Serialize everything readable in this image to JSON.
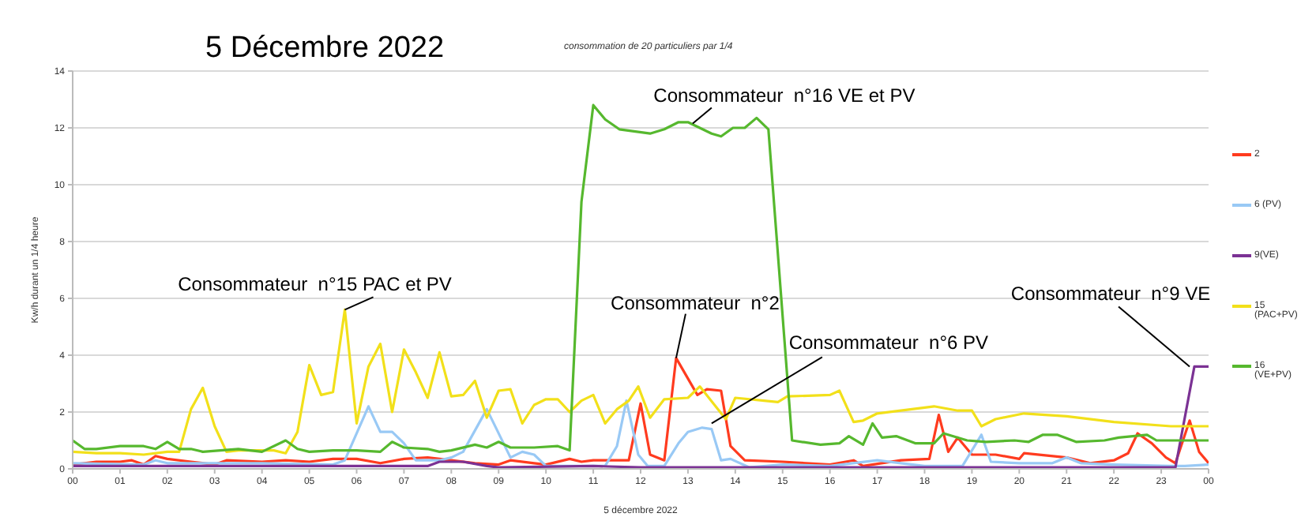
{
  "chart_data": {
    "type": "line",
    "title": "5 Décembre 2022",
    "subtitle": "consommation de 20 particuliers par 1/4",
    "xlabel": "5 décembre 2022",
    "ylabel": "Kw/h durant un 1/4 heure",
    "xlim": [
      0,
      24
    ],
    "xticks": [
      {
        "value": 0,
        "label": "00"
      },
      {
        "value": 1,
        "label": "01"
      },
      {
        "value": 2,
        "label": "02"
      },
      {
        "value": 3,
        "label": "03"
      },
      {
        "value": 4,
        "label": "04"
      },
      {
        "value": 5,
        "label": "05"
      },
      {
        "value": 6,
        "label": "06"
      },
      {
        "value": 7,
        "label": "07"
      },
      {
        "value": 8,
        "label": "08"
      },
      {
        "value": 9,
        "label": "09"
      },
      {
        "value": 10,
        "label": "10"
      },
      {
        "value": 11,
        "label": "11"
      },
      {
        "value": 12,
        "label": "12"
      },
      {
        "value": 13,
        "label": "13"
      },
      {
        "value": 14,
        "label": "14"
      },
      {
        "value": 15,
        "label": "15"
      },
      {
        "value": 16,
        "label": "16"
      },
      {
        "value": 17,
        "label": "17"
      },
      {
        "value": 18,
        "label": "18"
      },
      {
        "value": 19,
        "label": "19"
      },
      {
        "value": 20,
        "label": "20"
      },
      {
        "value": 21,
        "label": "21"
      },
      {
        "value": 22,
        "label": "22"
      },
      {
        "value": 23,
        "label": "23"
      },
      {
        "value": 24,
        "label": "00"
      }
    ],
    "ylim": [
      0,
      14
    ],
    "yticks": [
      0,
      2,
      4,
      6,
      8,
      10,
      12,
      14
    ],
    "grid": "y",
    "legend": "right",
    "marker": "none",
    "line_style": "solid",
    "series": [
      {
        "name": "2",
        "color": "#ff3b1f",
        "x": [
          0,
          0.5,
          1,
          1.25,
          1.5,
          1.75,
          2,
          2.5,
          3,
          3.25,
          4,
          4.5,
          5,
          5.5,
          6,
          6.5,
          7,
          7.5,
          8,
          8.5,
          9,
          9.25,
          9.75,
          10,
          10.5,
          10.75,
          11,
          11.5,
          11.75,
          12,
          12.2,
          12.5,
          12.75,
          13.2,
          13.4,
          13.7,
          13.9,
          14.2,
          15,
          16,
          16.5,
          16.7,
          17.5,
          18.1,
          18.3,
          18.5,
          18.7,
          19,
          19.5,
          20,
          20.1,
          21,
          21.5,
          22,
          22.3,
          22.5,
          22.8,
          23.1,
          23.3,
          23.6,
          23.8,
          24
        ],
        "values": [
          0.15,
          0.25,
          0.25,
          0.3,
          0.15,
          0.45,
          0.35,
          0.25,
          0.15,
          0.3,
          0.25,
          0.3,
          0.25,
          0.35,
          0.35,
          0.2,
          0.35,
          0.4,
          0.3,
          0.2,
          0.15,
          0.3,
          0.2,
          0.15,
          0.35,
          0.25,
          0.3,
          0.3,
          0.3,
          2.3,
          0.5,
          0.3,
          3.9,
          2.6,
          2.8,
          2.75,
          0.8,
          0.3,
          0.25,
          0.15,
          0.3,
          0.1,
          0.3,
          0.35,
          1.9,
          0.6,
          1.1,
          0.5,
          0.5,
          0.35,
          0.55,
          0.4,
          0.2,
          0.3,
          0.55,
          1.25,
          0.9,
          0.4,
          0.2,
          1.7,
          0.6,
          0.2
        ]
      },
      {
        "name": "6 (PV)",
        "color": "#99c9f5",
        "x": [
          0,
          1.5,
          1.75,
          2,
          4,
          5.5,
          5.75,
          6.25,
          6.5,
          6.75,
          7,
          7.25,
          7.75,
          8,
          8.25,
          8.75,
          9.25,
          9.5,
          9.75,
          10,
          10.5,
          11,
          11.25,
          11.5,
          11.7,
          11.95,
          12.15,
          12.5,
          12.8,
          13,
          13.3,
          13.5,
          13.7,
          13.9,
          14.3,
          15,
          16,
          17,
          17.5,
          18,
          18.8,
          19.2,
          19.4,
          20,
          20.7,
          21,
          21.3,
          22,
          23.2,
          23.5,
          24
        ],
        "values": [
          0.2,
          0.15,
          0.3,
          0.2,
          0.2,
          0.15,
          0.3,
          2.2,
          1.3,
          1.3,
          0.9,
          0.3,
          0.3,
          0.4,
          0.6,
          2.1,
          0.4,
          0.6,
          0.5,
          0.1,
          0.1,
          0.1,
          0.1,
          0.8,
          2.4,
          0.5,
          0.1,
          0.1,
          0.9,
          1.3,
          1.45,
          1.4,
          0.3,
          0.35,
          0.05,
          0.15,
          0.1,
          0.3,
          0.2,
          0.1,
          0.1,
          1.2,
          0.25,
          0.2,
          0.2,
          0.4,
          0.2,
          0.15,
          0.1,
          0.1,
          0.15
        ]
      },
      {
        "name": "9(VE)",
        "color": "#7b3294",
        "x": [
          0,
          3,
          6,
          7.5,
          7.75,
          8.25,
          8.75,
          9,
          11,
          12,
          16,
          23.3,
          23.7,
          24
        ],
        "values": [
          0.1,
          0.1,
          0.1,
          0.1,
          0.25,
          0.25,
          0.1,
          0.05,
          0.1,
          0.05,
          0.05,
          0.05,
          3.6,
          3.6
        ]
      },
      {
        "name": "15 (PAC+PV)",
        "color": "#f2e01a",
        "x": [
          0,
          0.5,
          1,
          1.5,
          2,
          2.25,
          2.5,
          2.75,
          3,
          3.25,
          3.5,
          4,
          4.25,
          4.5,
          4.75,
          5,
          5.25,
          5.5,
          5.75,
          6,
          6.25,
          6.5,
          6.75,
          7,
          7.25,
          7.5,
          7.75,
          8,
          8.25,
          8.5,
          8.75,
          9,
          9.25,
          9.5,
          9.75,
          10,
          10.25,
          10.5,
          10.75,
          11,
          11.25,
          11.5,
          11.75,
          11.95,
          12.2,
          12.5,
          13,
          13.25,
          13.8,
          14,
          14.9,
          15.1,
          16,
          16.2,
          16.5,
          16.7,
          17,
          17.5,
          18.2,
          18.7,
          19,
          19.2,
          19.5,
          20.1,
          21,
          22,
          23.2,
          24
        ],
        "values": [
          0.6,
          0.55,
          0.55,
          0.5,
          0.6,
          0.6,
          2.1,
          2.85,
          1.5,
          0.6,
          0.65,
          0.65,
          0.65,
          0.55,
          1.3,
          3.65,
          2.6,
          2.7,
          5.6,
          1.6,
          3.6,
          4.4,
          2.0,
          4.2,
          3.4,
          2.5,
          4.1,
          2.55,
          2.6,
          3.1,
          1.8,
          2.75,
          2.8,
          1.6,
          2.25,
          2.45,
          2.45,
          2.0,
          2.4,
          2.6,
          1.6,
          2.1,
          2.4,
          2.9,
          1.8,
          2.45,
          2.5,
          2.9,
          1.75,
          2.5,
          2.35,
          2.55,
          2.6,
          2.75,
          1.65,
          1.7,
          1.95,
          2.05,
          2.2,
          2.05,
          2.05,
          1.5,
          1.75,
          1.95,
          1.85,
          1.65,
          1.5,
          1.5
        ]
      },
      {
        "name": "16 (VE+PV)",
        "color": "#56b82e",
        "x": [
          0,
          0.25,
          0.5,
          1,
          1.5,
          1.75,
          2,
          2.25,
          2.5,
          2.75,
          3.5,
          4,
          4.5,
          4.75,
          5,
          5.5,
          6,
          6.5,
          6.75,
          7,
          7.5,
          7.75,
          8,
          8.5,
          8.75,
          9,
          9.25,
          9.75,
          10.25,
          10.5,
          10.75,
          11,
          11.25,
          11.55,
          12.2,
          12.5,
          12.8,
          13,
          13.5,
          13.7,
          13.95,
          14.2,
          14.45,
          14.7,
          15.2,
          15.8,
          16.2,
          16.4,
          16.7,
          16.9,
          17.1,
          17.4,
          17.8,
          18.2,
          18.4,
          18.9,
          19.3,
          19.9,
          20.2,
          20.5,
          20.8,
          21.2,
          21.8,
          22.1,
          22.7,
          22.9,
          23.8,
          24
        ],
        "values": [
          1.0,
          0.7,
          0.7,
          0.8,
          0.8,
          0.7,
          0.95,
          0.7,
          0.7,
          0.6,
          0.7,
          0.6,
          1.0,
          0.7,
          0.6,
          0.65,
          0.65,
          0.6,
          0.95,
          0.75,
          0.7,
          0.6,
          0.65,
          0.85,
          0.75,
          0.95,
          0.75,
          0.75,
          0.8,
          0.65,
          9.4,
          12.8,
          12.3,
          11.95,
          11.8,
          11.95,
          12.2,
          12.2,
          11.8,
          11.7,
          12.0,
          12.0,
          12.35,
          11.95,
          1.0,
          0.85,
          0.9,
          1.15,
          0.85,
          1.6,
          1.1,
          1.15,
          0.9,
          0.9,
          1.25,
          1.0,
          0.95,
          1.0,
          0.95,
          1.2,
          1.2,
          0.95,
          1.0,
          1.1,
          1.2,
          1.0,
          1.0,
          1.0
        ]
      }
    ],
    "annotations": [
      {
        "text": "Consommateur  n°15 PAC et PV",
        "x": 5.75,
        "y": 5.6
      },
      {
        "text": "Consommateur  n°16 VE et PV",
        "x": 13.1,
        "y": 12.15
      },
      {
        "text": "Consommateur  n°2",
        "x": 12.75,
        "y": 3.9
      },
      {
        "text": "Consommateur  n°6 PV",
        "x": 13.5,
        "y": 1.6
      },
      {
        "text": "Consommateur  n°9 VE",
        "x": 23.6,
        "y": 3.6
      }
    ]
  }
}
